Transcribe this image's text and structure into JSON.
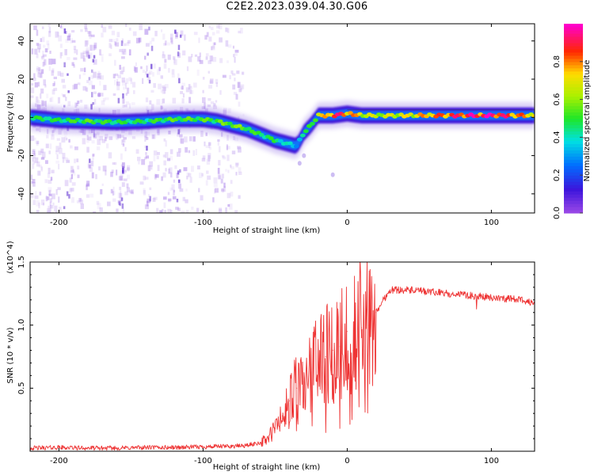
{
  "page": {
    "title": "C2E2.2023.039.04.30.G06"
  },
  "chart_data": [
    {
      "type": "heatmap",
      "title": "",
      "xlabel": "Height of straight line (km)",
      "ylabel": "Frequency (Hz)",
      "xlim": [
        -220,
        130
      ],
      "ylim": [
        -50,
        49
      ],
      "xticks": [
        -200,
        -100,
        0,
        100
      ],
      "yticks": [
        -40,
        -20,
        0,
        20,
        40
      ],
      "grid": false,
      "colormap": "rainbow (white/violet → blue → cyan → green → yellow → red → magenta)",
      "colorbar": {
        "label": "Normalized spectral amplitude",
        "range": [
          0,
          1
        ],
        "ticks": [
          0.0,
          0.2,
          0.4,
          0.6,
          0.8
        ]
      },
      "ridge": {
        "x": [
          -220,
          -200,
          -180,
          -160,
          -140,
          -120,
          -100,
          -90,
          -80,
          -70,
          -60,
          -50,
          -40,
          -35,
          -30,
          -25,
          -20,
          -10,
          0,
          10,
          20,
          40,
          60,
          80,
          100,
          120,
          130
        ],
        "freq": [
          0,
          -1.5,
          -2,
          -2.5,
          -2,
          -1,
          -1,
          -2,
          -4,
          -6,
          -9,
          -12,
          -14,
          -15,
          -8,
          -4,
          1,
          1,
          2,
          1,
          1,
          1,
          1,
          1,
          1,
          1,
          1
        ],
        "amplitude": [
          0.45,
          0.45,
          0.5,
          0.45,
          0.45,
          0.5,
          0.5,
          0.5,
          0.55,
          0.5,
          0.45,
          0.45,
          0.35,
          0.3,
          0.4,
          0.5,
          0.6,
          0.85,
          0.8,
          0.65,
          0.6,
          0.65,
          0.75,
          0.85,
          0.9,
          0.75,
          0.7
        ]
      }
    },
    {
      "type": "line",
      "title": "",
      "xlabel": "Height of straight line (km)",
      "ylabel": "SNR (10 * v/v)",
      "y_multiplier": "(x10^4)",
      "xlim": [
        -220,
        130
      ],
      "ylim": [
        0,
        15000
      ],
      "xticks": [
        -200,
        -100,
        0,
        100
      ],
      "yticks": [
        5000,
        10000,
        15000
      ],
      "yticklabels": [
        "0.5",
        "1.0",
        "1.5"
      ],
      "grid": false,
      "color": "#ee3333",
      "series": [
        {
          "x": [
            -220,
            -200,
            -180,
            -160,
            -140,
            -120,
            -100,
            -80,
            -70,
            -60,
            -55,
            -50,
            -45,
            -40,
            -35,
            -30,
            -25,
            -20,
            -15,
            -10,
            -5,
            0,
            5,
            10,
            15,
            20,
            25,
            30,
            40,
            50,
            60,
            70,
            80,
            90,
            100,
            110,
            120,
            130
          ],
          "values": [
            250,
            300,
            250,
            250,
            300,
            300,
            350,
            400,
            450,
            700,
            1000,
            1800,
            2800,
            4000,
            5000,
            5500,
            6500,
            7000,
            7500,
            8000,
            8300,
            9500,
            10500,
            9800,
            10000,
            11000,
            12000,
            12800,
            12800,
            12700,
            12600,
            12500,
            12400,
            12300,
            12200,
            12100,
            12000,
            11800
          ]
        }
      ]
    }
  ]
}
